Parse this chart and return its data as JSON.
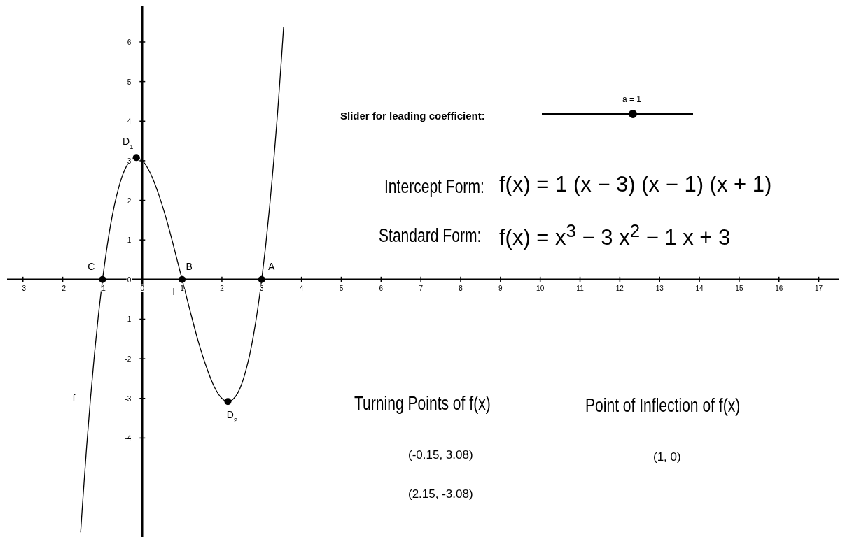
{
  "chart_data": {
    "type": "line",
    "xlim": [
      -3.4,
      17.5
    ],
    "ylim": [
      -6.5,
      6.9
    ],
    "xticks": [
      -3,
      -2,
      -1,
      0,
      1,
      2,
      3,
      4,
      5,
      6,
      7,
      8,
      9,
      10,
      11,
      12,
      13,
      14,
      15,
      16,
      17
    ],
    "yticks": [
      -4,
      -3,
      -2,
      -1,
      0,
      1,
      2,
      3,
      4,
      5,
      6
    ],
    "grid": false,
    "legend": false,
    "series": [
      {
        "name": "f",
        "color": "#000000",
        "x": [
          -1.55,
          -1.5,
          -1.4,
          -1.3,
          -1.2,
          -1.1,
          -1,
          -0.9,
          -0.8,
          -0.7,
          -0.6,
          -0.5,
          -0.4,
          -0.3,
          -0.15,
          0,
          0.2,
          0.4,
          0.6,
          0.8,
          1,
          1.2,
          1.4,
          1.6,
          1.8,
          2,
          2.15,
          2.3,
          2.4,
          2.5,
          2.6,
          2.7,
          2.8,
          2.9,
          3,
          3.1,
          3.2,
          3.3,
          3.4,
          3.5,
          3.55
        ],
        "values": [
          -6.38,
          -5.63,
          -4.22,
          -2.97,
          -1.85,
          -0.86,
          0,
          0.74,
          1.37,
          1.89,
          2.3,
          2.63,
          2.86,
          3.0,
          3.08,
          3,
          2.69,
          2.18,
          1.54,
          0.79,
          0,
          -0.79,
          -1.54,
          -2.18,
          -2.69,
          -3,
          -3.08,
          -3.0,
          -2.86,
          -2.63,
          -2.3,
          -1.89,
          -1.37,
          -0.74,
          0,
          0.86,
          1.85,
          2.97,
          4.22,
          5.63,
          6.38
        ]
      },
      {
        "type": "scatter",
        "color": "#000000",
        "marker": "circle",
        "x": [
          3,
          1,
          -1,
          -0.15,
          2.15
        ],
        "values": [
          0,
          0,
          0,
          3.08,
          -3.08
        ]
      }
    ],
    "annotations": [
      "Slider for leading coefficient:",
      "a = 1",
      "Intercept Form:",
      "f(x) = 1 (x − 3) (x − 1) (x + 1)",
      "Standard Form:",
      "f(x) = x$^{3}$ − 3 x$^{2}$ − 1 x + 3",
      "Turning Points of f(x)",
      "Point of Inflection of f(x)",
      "(-0.15, 3.08)",
      "(2.15, -3.08)",
      "(1, 0)",
      {
        "text": "A",
        "x": 3,
        "y": 0
      },
      {
        "text": "B",
        "x": 1,
        "y": 0
      },
      {
        "text": "C",
        "x": -1,
        "y": 0
      },
      {
        "text": "D$_{1}$",
        "x": -0.15,
        "y": 3.08
      },
      {
        "text": "D$_{2}$",
        "x": 2.15,
        "y": -3.08
      },
      {
        "text": "I",
        "x": 1,
        "y": 0
      }
    ]
  }
}
